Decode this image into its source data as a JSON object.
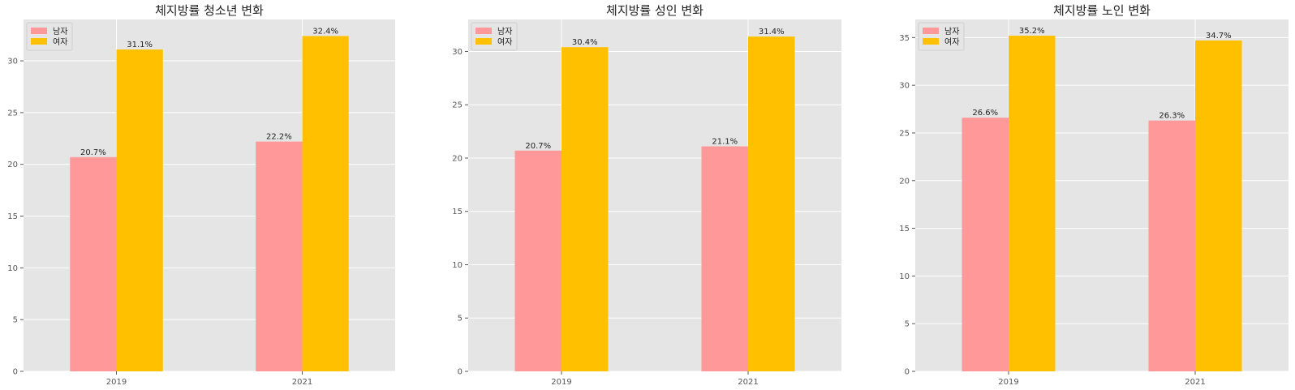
{
  "chart_data": [
    {
      "type": "bar",
      "title": "체지방률 청소년 변화",
      "categories": [
        "2019",
        "2021"
      ],
      "series": [
        {
          "name": "남자",
          "values": [
            20.7,
            22.2
          ],
          "labels": [
            "20.7%",
            "22.2%"
          ]
        },
        {
          "name": "여자",
          "values": [
            31.1,
            32.4
          ],
          "labels": [
            "31.1%",
            "32.4%"
          ]
        }
      ],
      "ylim": [
        0,
        34
      ],
      "yticks": [
        0,
        5,
        10,
        15,
        20,
        25,
        30
      ],
      "xlabel": "",
      "ylabel": "",
      "grid": true,
      "legend": "top-left"
    },
    {
      "type": "bar",
      "title": "체지방률 성인 변화",
      "categories": [
        "2019",
        "2021"
      ],
      "series": [
        {
          "name": "남자",
          "values": [
            20.7,
            21.1
          ],
          "labels": [
            "20.7%",
            "21.1%"
          ]
        },
        {
          "name": "여자",
          "values": [
            30.4,
            31.4
          ],
          "labels": [
            "30.4%",
            "31.4%"
          ]
        }
      ],
      "ylim": [
        0,
        33
      ],
      "yticks": [
        0,
        5,
        10,
        15,
        20,
        25,
        30
      ],
      "xlabel": "",
      "ylabel": "",
      "grid": true,
      "legend": "top-left"
    },
    {
      "type": "bar",
      "title": "체지방률 노인 변화",
      "categories": [
        "2019",
        "2021"
      ],
      "series": [
        {
          "name": "남자",
          "values": [
            26.6,
            26.3
          ],
          "labels": [
            "26.6%",
            "26.3%"
          ]
        },
        {
          "name": "여자",
          "values": [
            35.2,
            34.7
          ],
          "labels": [
            "35.2%",
            "34.7%"
          ]
        }
      ],
      "ylim": [
        0,
        36.9
      ],
      "yticks": [
        0,
        5,
        10,
        15,
        20,
        25,
        30,
        35
      ],
      "xlabel": "",
      "ylabel": "",
      "grid": true,
      "legend": "top-left"
    }
  ],
  "colors": {
    "남자": "#ff9999",
    "여자": "#ffc000",
    "plot_background": "#e5e5e5",
    "grid": "#ffffff"
  }
}
